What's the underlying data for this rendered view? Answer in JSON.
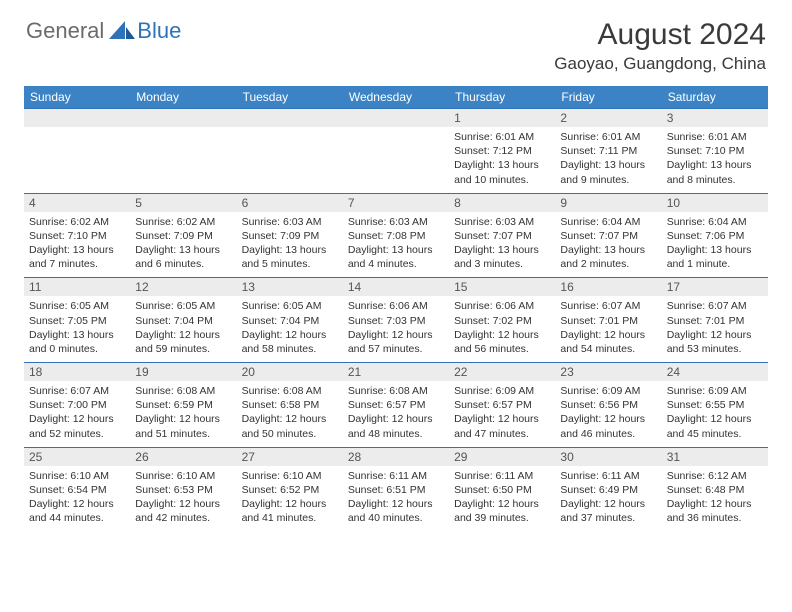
{
  "logo": {
    "text1": "General",
    "text2": "Blue",
    "gray": "#6b6b6b",
    "blue": "#2f72b8"
  },
  "title": "August 2024",
  "location": "Gaoyao, Guangdong, China",
  "header_bg": "#3b83c5",
  "day_num_bg": "#ececec",
  "border_color": "#2f72b8",
  "dow": [
    "Sunday",
    "Monday",
    "Tuesday",
    "Wednesday",
    "Thursday",
    "Friday",
    "Saturday"
  ],
  "weeks": [
    [
      {
        "n": "",
        "sr": "",
        "ss": "",
        "dl": ""
      },
      {
        "n": "",
        "sr": "",
        "ss": "",
        "dl": ""
      },
      {
        "n": "",
        "sr": "",
        "ss": "",
        "dl": ""
      },
      {
        "n": "",
        "sr": "",
        "ss": "",
        "dl": ""
      },
      {
        "n": "1",
        "sr": "Sunrise: 6:01 AM",
        "ss": "Sunset: 7:12 PM",
        "dl": "Daylight: 13 hours and 10 minutes."
      },
      {
        "n": "2",
        "sr": "Sunrise: 6:01 AM",
        "ss": "Sunset: 7:11 PM",
        "dl": "Daylight: 13 hours and 9 minutes."
      },
      {
        "n": "3",
        "sr": "Sunrise: 6:01 AM",
        "ss": "Sunset: 7:10 PM",
        "dl": "Daylight: 13 hours and 8 minutes."
      }
    ],
    [
      {
        "n": "4",
        "sr": "Sunrise: 6:02 AM",
        "ss": "Sunset: 7:10 PM",
        "dl": "Daylight: 13 hours and 7 minutes."
      },
      {
        "n": "5",
        "sr": "Sunrise: 6:02 AM",
        "ss": "Sunset: 7:09 PM",
        "dl": "Daylight: 13 hours and 6 minutes."
      },
      {
        "n": "6",
        "sr": "Sunrise: 6:03 AM",
        "ss": "Sunset: 7:09 PM",
        "dl": "Daylight: 13 hours and 5 minutes."
      },
      {
        "n": "7",
        "sr": "Sunrise: 6:03 AM",
        "ss": "Sunset: 7:08 PM",
        "dl": "Daylight: 13 hours and 4 minutes."
      },
      {
        "n": "8",
        "sr": "Sunrise: 6:03 AM",
        "ss": "Sunset: 7:07 PM",
        "dl": "Daylight: 13 hours and 3 minutes."
      },
      {
        "n": "9",
        "sr": "Sunrise: 6:04 AM",
        "ss": "Sunset: 7:07 PM",
        "dl": "Daylight: 13 hours and 2 minutes."
      },
      {
        "n": "10",
        "sr": "Sunrise: 6:04 AM",
        "ss": "Sunset: 7:06 PM",
        "dl": "Daylight: 13 hours and 1 minute."
      }
    ],
    [
      {
        "n": "11",
        "sr": "Sunrise: 6:05 AM",
        "ss": "Sunset: 7:05 PM",
        "dl": "Daylight: 13 hours and 0 minutes."
      },
      {
        "n": "12",
        "sr": "Sunrise: 6:05 AM",
        "ss": "Sunset: 7:04 PM",
        "dl": "Daylight: 12 hours and 59 minutes."
      },
      {
        "n": "13",
        "sr": "Sunrise: 6:05 AM",
        "ss": "Sunset: 7:04 PM",
        "dl": "Daylight: 12 hours and 58 minutes."
      },
      {
        "n": "14",
        "sr": "Sunrise: 6:06 AM",
        "ss": "Sunset: 7:03 PM",
        "dl": "Daylight: 12 hours and 57 minutes."
      },
      {
        "n": "15",
        "sr": "Sunrise: 6:06 AM",
        "ss": "Sunset: 7:02 PM",
        "dl": "Daylight: 12 hours and 56 minutes."
      },
      {
        "n": "16",
        "sr": "Sunrise: 6:07 AM",
        "ss": "Sunset: 7:01 PM",
        "dl": "Daylight: 12 hours and 54 minutes."
      },
      {
        "n": "17",
        "sr": "Sunrise: 6:07 AM",
        "ss": "Sunset: 7:01 PM",
        "dl": "Daylight: 12 hours and 53 minutes."
      }
    ],
    [
      {
        "n": "18",
        "sr": "Sunrise: 6:07 AM",
        "ss": "Sunset: 7:00 PM",
        "dl": "Daylight: 12 hours and 52 minutes."
      },
      {
        "n": "19",
        "sr": "Sunrise: 6:08 AM",
        "ss": "Sunset: 6:59 PM",
        "dl": "Daylight: 12 hours and 51 minutes."
      },
      {
        "n": "20",
        "sr": "Sunrise: 6:08 AM",
        "ss": "Sunset: 6:58 PM",
        "dl": "Daylight: 12 hours and 50 minutes."
      },
      {
        "n": "21",
        "sr": "Sunrise: 6:08 AM",
        "ss": "Sunset: 6:57 PM",
        "dl": "Daylight: 12 hours and 48 minutes."
      },
      {
        "n": "22",
        "sr": "Sunrise: 6:09 AM",
        "ss": "Sunset: 6:57 PM",
        "dl": "Daylight: 12 hours and 47 minutes."
      },
      {
        "n": "23",
        "sr": "Sunrise: 6:09 AM",
        "ss": "Sunset: 6:56 PM",
        "dl": "Daylight: 12 hours and 46 minutes."
      },
      {
        "n": "24",
        "sr": "Sunrise: 6:09 AM",
        "ss": "Sunset: 6:55 PM",
        "dl": "Daylight: 12 hours and 45 minutes."
      }
    ],
    [
      {
        "n": "25",
        "sr": "Sunrise: 6:10 AM",
        "ss": "Sunset: 6:54 PM",
        "dl": "Daylight: 12 hours and 44 minutes."
      },
      {
        "n": "26",
        "sr": "Sunrise: 6:10 AM",
        "ss": "Sunset: 6:53 PM",
        "dl": "Daylight: 12 hours and 42 minutes."
      },
      {
        "n": "27",
        "sr": "Sunrise: 6:10 AM",
        "ss": "Sunset: 6:52 PM",
        "dl": "Daylight: 12 hours and 41 minutes."
      },
      {
        "n": "28",
        "sr": "Sunrise: 6:11 AM",
        "ss": "Sunset: 6:51 PM",
        "dl": "Daylight: 12 hours and 40 minutes."
      },
      {
        "n": "29",
        "sr": "Sunrise: 6:11 AM",
        "ss": "Sunset: 6:50 PM",
        "dl": "Daylight: 12 hours and 39 minutes."
      },
      {
        "n": "30",
        "sr": "Sunrise: 6:11 AM",
        "ss": "Sunset: 6:49 PM",
        "dl": "Daylight: 12 hours and 37 minutes."
      },
      {
        "n": "31",
        "sr": "Sunrise: 6:12 AM",
        "ss": "Sunset: 6:48 PM",
        "dl": "Daylight: 12 hours and 36 minutes."
      }
    ]
  ]
}
